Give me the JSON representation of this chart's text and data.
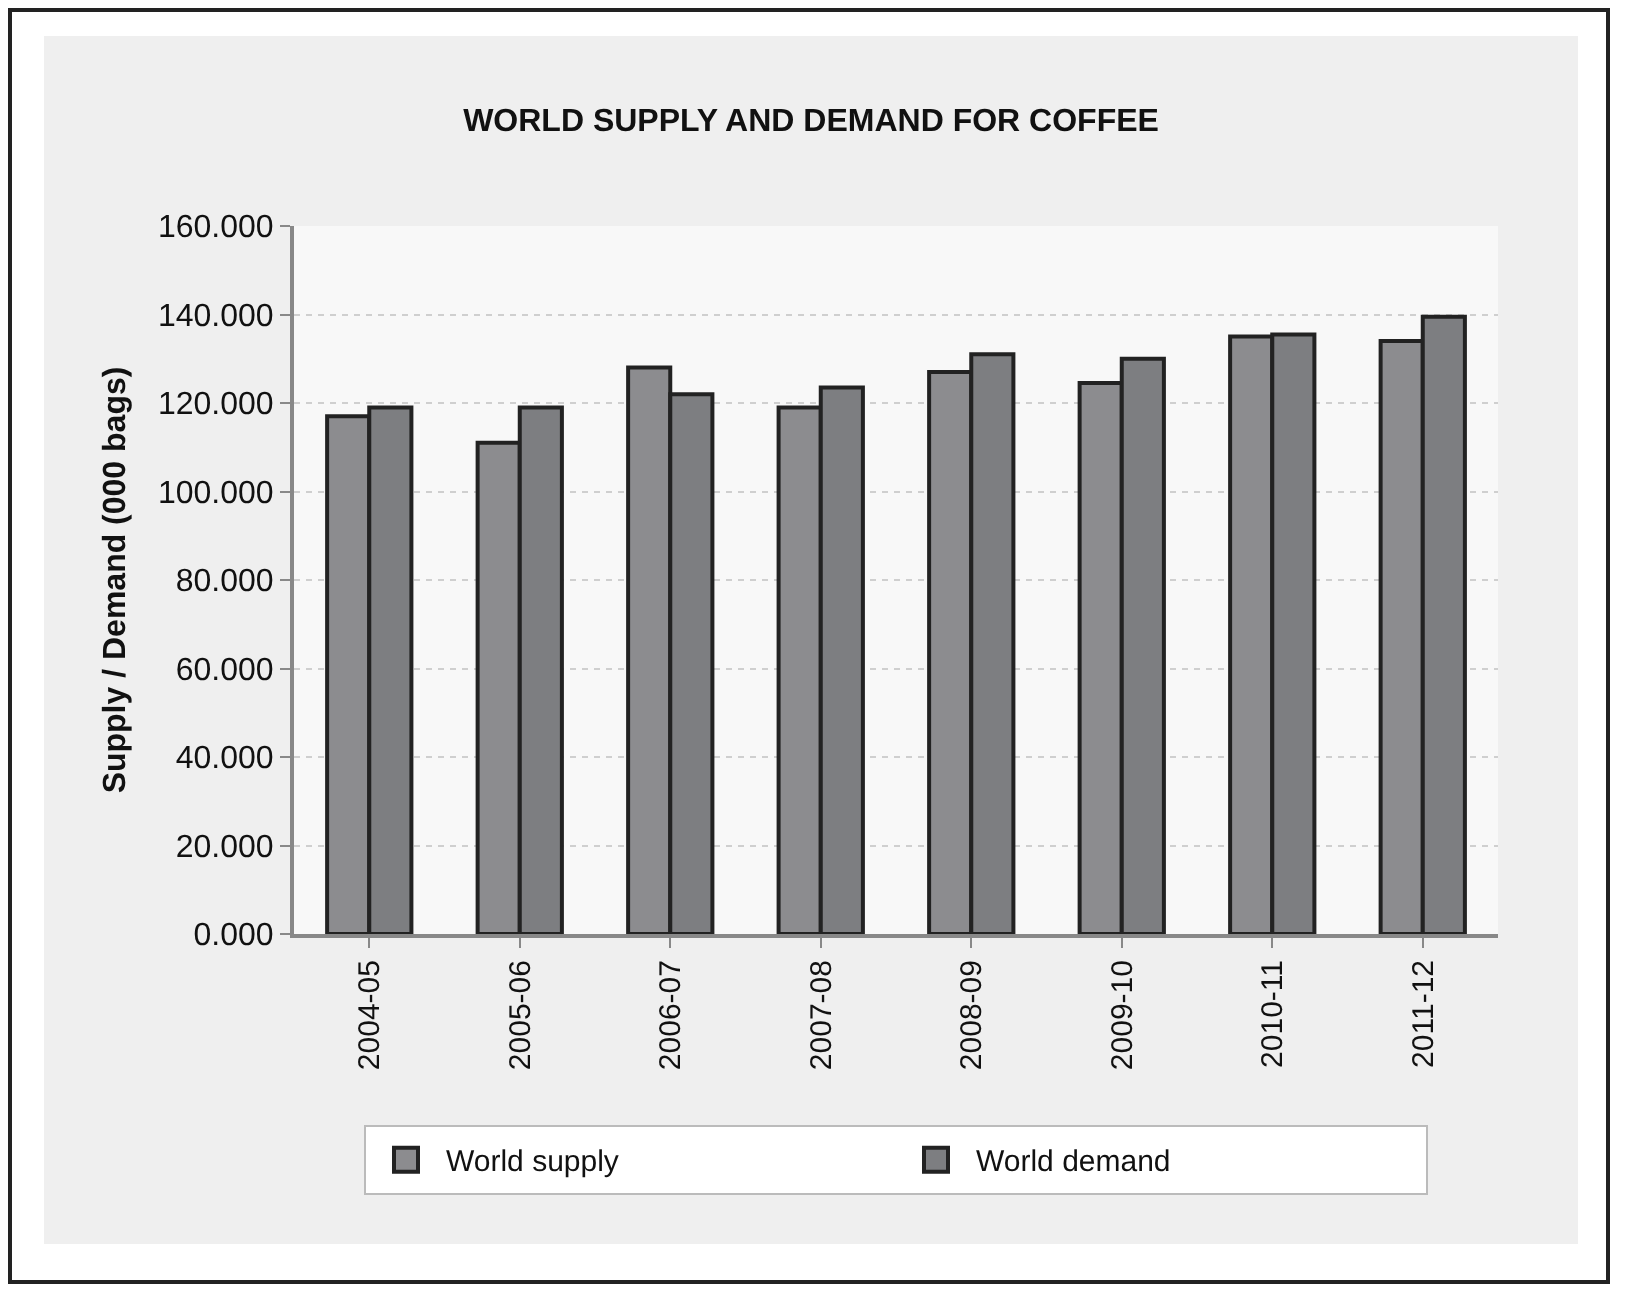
{
  "chart_data": {
    "type": "bar",
    "title": "WORLD SUPPLY AND DEMAND FOR COFFEE",
    "ylabel": "Supply / Demand (000 bags)",
    "categories": [
      "2004-05",
      "2005-06",
      "2006-07",
      "2007-08",
      "2008-09",
      "2009-10",
      "2010-11",
      "2011-12"
    ],
    "series": [
      {
        "name": "World supply",
        "color": "#8c8c8f",
        "values": [
          117,
          111,
          128,
          119,
          127,
          124.5,
          135,
          134
        ]
      },
      {
        "name": "World demand",
        "color": "#7d7e81",
        "values": [
          119,
          119,
          122,
          123.5,
          131,
          130,
          135.5,
          139.5
        ]
      }
    ],
    "ylim": [
      0,
      160
    ],
    "yticks": [
      {
        "value": 0,
        "label": "0.000"
      },
      {
        "value": 20,
        "label": "20.000"
      },
      {
        "value": 40,
        "label": "40.000"
      },
      {
        "value": 60,
        "label": "60.000"
      },
      {
        "value": 80,
        "label": "80.000"
      },
      {
        "value": 100,
        "label": "100.000"
      },
      {
        "value": 120,
        "label": "120.000"
      },
      {
        "value": 140,
        "label": "140.000"
      },
      {
        "value": 160,
        "label": "160.000"
      }
    ],
    "grid": "y",
    "legend": "bottom"
  }
}
